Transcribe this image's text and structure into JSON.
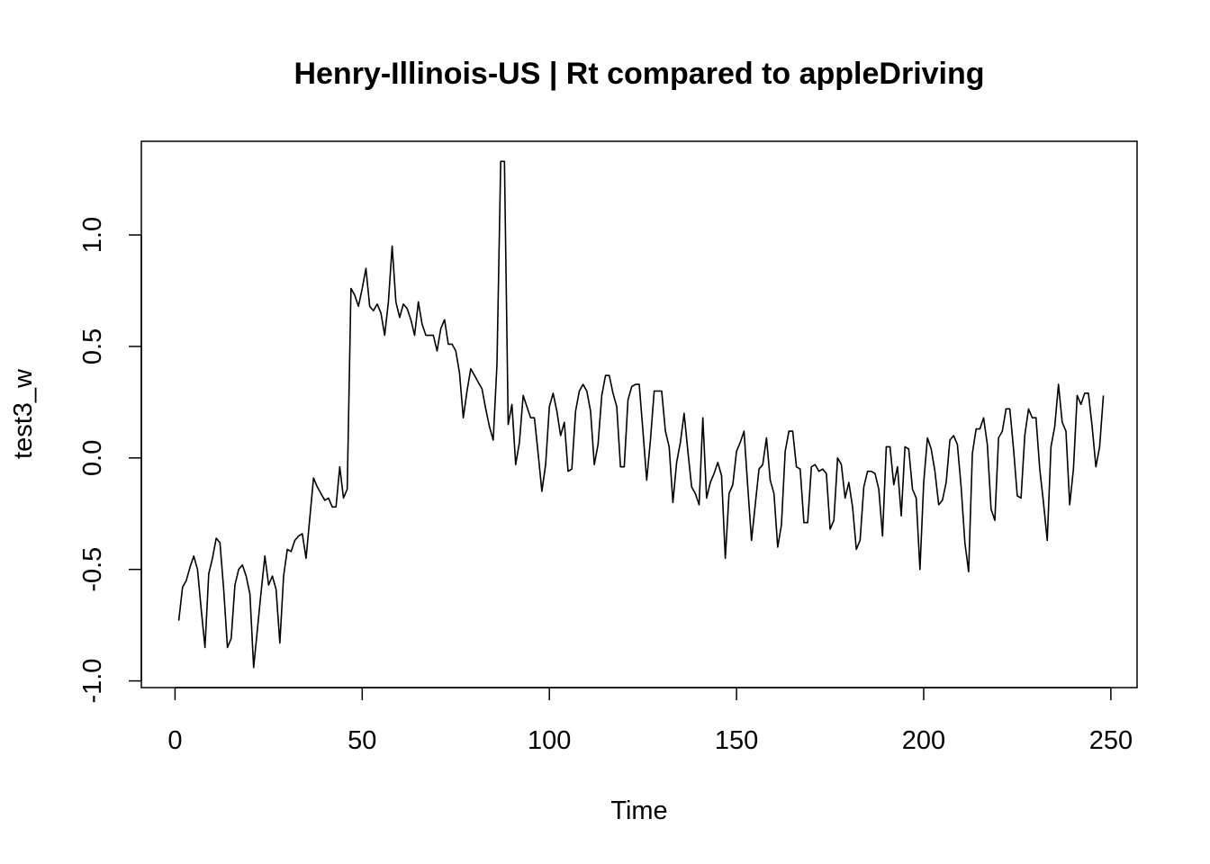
{
  "chart_data": {
    "type": "line",
    "title": "Henry-Illinois-US | Rt compared to appleDriving",
    "xlabel": "Time",
    "ylabel": "test3_w",
    "xlim": [
      -9,
      257
    ],
    "ylim": [
      -1.03,
      1.42
    ],
    "x_ticks": [
      0,
      50,
      100,
      150,
      200,
      250
    ],
    "x_tick_labels": [
      "0",
      "50",
      "100",
      "150",
      "200",
      "250"
    ],
    "y_ticks": [
      -1.0,
      -0.5,
      0.0,
      0.5,
      1.0
    ],
    "y_tick_labels": [
      "-1.0",
      "-0.5",
      "0.0",
      "0.5",
      "1.0"
    ],
    "grid": false,
    "line_color": "#000000",
    "series": [
      {
        "x_start": 1,
        "x_step": 1,
        "values": [
          -0.73,
          -0.58,
          -0.55,
          -0.49,
          -0.44,
          -0.5,
          -0.68,
          -0.85,
          -0.52,
          -0.45,
          -0.36,
          -0.38,
          -0.59,
          -0.85,
          -0.81,
          -0.57,
          -0.5,
          -0.48,
          -0.53,
          -0.61,
          -0.94,
          -0.77,
          -0.6,
          -0.44,
          -0.57,
          -0.53,
          -0.59,
          -0.83,
          -0.53,
          -0.41,
          -0.42,
          -0.37,
          -0.35,
          -0.34,
          -0.45,
          -0.27,
          -0.09,
          -0.13,
          -0.16,
          -0.19,
          -0.18,
          -0.22,
          -0.22,
          -0.04,
          -0.18,
          -0.14,
          0.76,
          0.73,
          0.68,
          0.76,
          0.85,
          0.68,
          0.66,
          0.69,
          0.65,
          0.55,
          0.7,
          0.95,
          0.7,
          0.63,
          0.69,
          0.67,
          0.62,
          0.55,
          0.7,
          0.6,
          0.55,
          0.55,
          0.55,
          0.48,
          0.58,
          0.62,
          0.51,
          0.51,
          0.48,
          0.38,
          0.18,
          0.3,
          0.4,
          0.37,
          0.34,
          0.31,
          0.22,
          0.14,
          0.08,
          0.42,
          1.33,
          1.33,
          0.15,
          0.24,
          -0.03,
          0.07,
          0.28,
          0.23,
          0.18,
          0.18,
          0.02,
          -0.15,
          -0.03,
          0.23,
          0.29,
          0.21,
          0.1,
          0.16,
          -0.06,
          -0.05,
          0.21,
          0.3,
          0.33,
          0.3,
          0.21,
          -0.03,
          0.06,
          0.28,
          0.37,
          0.37,
          0.29,
          0.23,
          -0.04,
          -0.04,
          0.26,
          0.32,
          0.33,
          0.33,
          0.12,
          -0.1,
          0.08,
          0.3,
          0.3,
          0.3,
          0.12,
          0.05,
          -0.2,
          -0.02,
          0.07,
          0.2,
          0.03,
          -0.13,
          -0.16,
          -0.21,
          0.18,
          -0.18,
          -0.11,
          -0.07,
          -0.02,
          -0.08,
          -0.45,
          -0.16,
          -0.12,
          0.03,
          0.07,
          0.12,
          -0.13,
          -0.37,
          -0.21,
          -0.05,
          -0.03,
          0.09,
          -0.1,
          -0.16,
          -0.4,
          -0.3,
          0.03,
          0.12,
          0.12,
          -0.04,
          -0.05,
          -0.29,
          -0.29,
          -0.04,
          -0.03,
          -0.06,
          -0.05,
          -0.07,
          -0.32,
          -0.28,
          0.0,
          -0.03,
          -0.18,
          -0.11,
          -0.22,
          -0.41,
          -0.37,
          -0.13,
          -0.06,
          -0.06,
          -0.07,
          -0.14,
          -0.35,
          0.05,
          0.05,
          -0.12,
          -0.04,
          -0.26,
          0.05,
          0.04,
          -0.14,
          -0.18,
          -0.5,
          -0.11,
          0.09,
          0.04,
          -0.06,
          -0.21,
          -0.19,
          -0.11,
          0.08,
          0.1,
          0.06,
          -0.13,
          -0.38,
          -0.51,
          0.02,
          0.13,
          0.13,
          0.18,
          0.06,
          -0.23,
          -0.28,
          0.09,
          0.12,
          0.22,
          0.22,
          0.04,
          -0.17,
          -0.18,
          0.1,
          0.22,
          0.18,
          0.18,
          -0.05,
          -0.2,
          -0.37,
          0.05,
          0.14,
          0.33,
          0.16,
          0.12,
          -0.21,
          -0.05,
          0.28,
          0.24,
          0.29,
          0.29,
          0.14,
          -0.04,
          0.05,
          0.28
        ]
      }
    ]
  }
}
